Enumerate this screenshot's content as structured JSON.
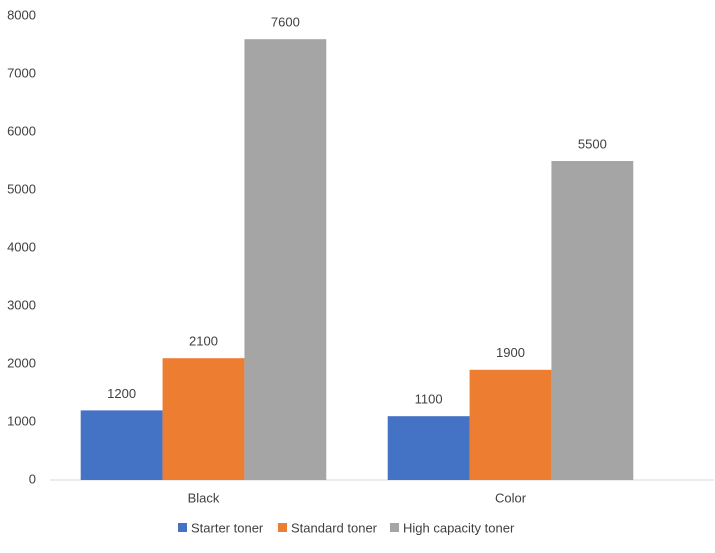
{
  "chart_data": {
    "type": "bar",
    "categories": [
      "Black",
      "Color"
    ],
    "series": [
      {
        "name": "Starter toner",
        "color": "#4472c4",
        "values": [
          1200,
          1100
        ]
      },
      {
        "name": "Standard toner",
        "color": "#ed7d31",
        "values": [
          2100,
          1900
        ]
      },
      {
        "name": "High capacity toner",
        "color": "#a5a5a5",
        "values": [
          7600,
          5500
        ]
      }
    ],
    "ylim": [
      0,
      8000
    ],
    "yticks": [
      0,
      1000,
      2000,
      3000,
      4000,
      5000,
      6000,
      7000,
      8000
    ],
    "grid": false,
    "data_labels": true,
    "legend": "bottom"
  }
}
